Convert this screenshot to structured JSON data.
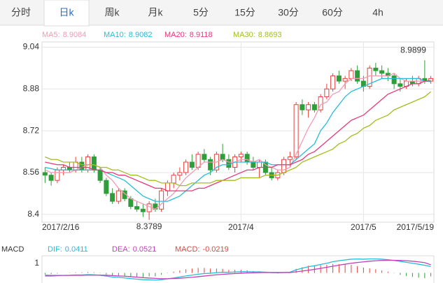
{
  "tabs": [
    "分时",
    "日k",
    "周k",
    "月k",
    "5分",
    "15分",
    "30分",
    "60分",
    "4h"
  ],
  "chart_data": [
    {
      "type": "candlestick",
      "categories": [
        "2017/2/16",
        null,
        null,
        null,
        null,
        null,
        null,
        null,
        null,
        null,
        null,
        null,
        null,
        null,
        null,
        null,
        null,
        null,
        null,
        null,
        null,
        null,
        null,
        null,
        null,
        null,
        null,
        null,
        null,
        null,
        null,
        null,
        "2017/4",
        null,
        null,
        null,
        null,
        null,
        null,
        null,
        null,
        null,
        null,
        null,
        null,
        null,
        null,
        null,
        null,
        null,
        null,
        null,
        "2017/5",
        null,
        null,
        null,
        null,
        null,
        null,
        null,
        null,
        null,
        null,
        "2017/5/19"
      ],
      "open": [
        8.56,
        8.55,
        8.53,
        8.57,
        8.58,
        8.57,
        8.6,
        8.57,
        8.62,
        8.57,
        8.53,
        8.48,
        8.45,
        8.49,
        8.46,
        8.43,
        8.42,
        8.41,
        8.44,
        8.42,
        8.49,
        8.52,
        8.55,
        8.56,
        8.6,
        8.58,
        8.63,
        8.61,
        8.57,
        8.63,
        8.61,
        8.58,
        8.62,
        8.63,
        8.6,
        8.58,
        8.6,
        8.56,
        8.54,
        8.56,
        8.61,
        8.62,
        8.82,
        8.8,
        8.82,
        8.8,
        8.85,
        8.88,
        8.93,
        8.91,
        8.92,
        8.95,
        8.91,
        8.89,
        8.96,
        8.95,
        8.94,
        8.93,
        8.9,
        8.89,
        8.91,
        8.9,
        8.92,
        8.91
      ],
      "high": [
        8.58,
        8.56,
        8.58,
        8.59,
        8.6,
        8.62,
        8.62,
        8.63,
        8.63,
        8.58,
        8.54,
        8.5,
        8.5,
        8.5,
        8.47,
        8.45,
        8.44,
        8.45,
        8.46,
        8.5,
        8.53,
        8.56,
        8.58,
        8.61,
        8.63,
        8.64,
        8.65,
        8.62,
        8.64,
        8.67,
        8.63,
        8.63,
        8.64,
        8.64,
        8.62,
        8.61,
        8.61,
        8.58,
        8.57,
        8.62,
        8.64,
        8.83,
        8.84,
        8.83,
        8.83,
        8.86,
        8.9,
        8.94,
        8.95,
        8.93,
        8.96,
        8.97,
        8.93,
        8.97,
        8.98,
        8.97,
        8.96,
        8.94,
        8.92,
        8.92,
        8.93,
        8.93,
        8.9899,
        8.93
      ],
      "low": [
        8.52,
        8.51,
        8.52,
        8.55,
        8.56,
        8.56,
        8.56,
        8.56,
        8.56,
        8.52,
        8.47,
        8.44,
        8.44,
        8.45,
        8.42,
        8.41,
        8.39,
        8.3789,
        8.41,
        8.41,
        8.47,
        8.5,
        8.53,
        8.55,
        8.57,
        8.57,
        8.6,
        8.55,
        8.56,
        8.6,
        8.57,
        8.56,
        8.6,
        8.59,
        8.57,
        8.54,
        8.55,
        8.53,
        8.53,
        8.55,
        8.58,
        8.61,
        8.78,
        8.77,
        8.79,
        8.79,
        8.84,
        8.87,
        8.9,
        8.88,
        8.91,
        8.9,
        8.87,
        8.88,
        8.93,
        8.92,
        8.91,
        8.88,
        8.87,
        8.88,
        8.89,
        8.89,
        8.9,
        8.9
      ],
      "close": [
        8.55,
        8.53,
        8.57,
        8.58,
        8.57,
        8.6,
        8.57,
        8.62,
        8.57,
        8.53,
        8.48,
        8.45,
        8.49,
        8.46,
        8.43,
        8.42,
        8.41,
        8.44,
        8.42,
        8.49,
        8.52,
        8.55,
        8.56,
        8.6,
        8.58,
        8.63,
        8.61,
        8.57,
        8.63,
        8.61,
        8.58,
        8.62,
        8.63,
        8.6,
        8.58,
        8.6,
        8.56,
        8.54,
        8.56,
        8.61,
        8.62,
        8.82,
        8.8,
        8.82,
        8.8,
        8.85,
        8.88,
        8.93,
        8.91,
        8.92,
        8.95,
        8.91,
        8.89,
        8.96,
        8.95,
        8.94,
        8.93,
        8.9,
        8.89,
        8.91,
        8.9,
        8.92,
        8.91,
        8.92
      ],
      "up_color": "#e8413c",
      "down_color": "#2f9e3a",
      "series": [
        {
          "name": "MA5:",
          "color": "#f29bb4",
          "values": [
            8.57,
            8.56,
            8.56,
            8.56,
            8.56,
            8.57,
            8.58,
            8.59,
            8.59,
            8.58,
            8.55,
            8.53,
            8.5,
            8.48,
            8.46,
            8.45,
            8.44,
            8.43,
            8.42,
            8.44,
            8.46,
            8.48,
            8.51,
            8.54,
            8.56,
            8.58,
            8.6,
            8.6,
            8.6,
            8.61,
            8.6,
            8.6,
            8.61,
            8.61,
            8.6,
            8.61,
            8.59,
            8.58,
            8.57,
            8.57,
            8.58,
            8.63,
            8.68,
            8.73,
            8.77,
            8.82,
            8.83,
            8.86,
            8.87,
            8.9,
            8.92,
            8.92,
            8.92,
            8.93,
            8.93,
            8.93,
            8.93,
            8.94,
            8.92,
            8.91,
            8.91,
            8.91,
            8.91,
            8.9084
          ]
        },
        {
          "name": "MA10:",
          "color": "#26bcd7",
          "values": [
            8.58,
            8.575,
            8.57,
            8.57,
            8.57,
            8.57,
            8.57,
            8.57,
            8.57,
            8.57,
            8.56,
            8.55,
            8.54,
            8.53,
            8.51,
            8.49,
            8.47,
            8.46,
            8.45,
            8.45,
            8.45,
            8.46,
            8.47,
            8.49,
            8.51,
            8.53,
            8.55,
            8.56,
            8.58,
            8.59,
            8.59,
            8.6,
            8.6,
            8.6,
            8.6,
            8.6,
            8.6,
            8.59,
            8.59,
            8.59,
            8.59,
            8.61,
            8.63,
            8.65,
            8.67,
            8.72,
            8.75,
            8.79,
            8.82,
            8.85,
            8.87,
            8.88,
            8.89,
            8.9,
            8.91,
            8.92,
            8.92,
            8.92,
            8.92,
            8.92,
            8.92,
            8.92,
            8.91,
            8.9082
          ]
        },
        {
          "name": "MA20:",
          "color": "#e53a7a",
          "values": [
            8.6,
            8.595,
            8.59,
            8.59,
            8.58,
            8.58,
            8.58,
            8.58,
            8.57,
            8.57,
            8.56,
            8.56,
            8.55,
            8.55,
            8.54,
            8.53,
            8.52,
            8.51,
            8.5,
            8.5,
            8.49,
            8.49,
            8.49,
            8.49,
            8.49,
            8.5,
            8.5,
            8.51,
            8.52,
            8.53,
            8.54,
            8.55,
            8.56,
            8.57,
            8.57,
            8.58,
            8.58,
            8.58,
            8.59,
            8.59,
            8.59,
            8.6,
            8.61,
            8.63,
            8.64,
            8.66,
            8.68,
            8.7,
            8.72,
            8.74,
            8.76,
            8.77,
            8.78,
            8.8,
            8.82,
            8.84,
            8.86,
            8.87,
            8.88,
            8.89,
            8.9,
            8.9,
            8.91,
            8.9118
          ]
        },
        {
          "name": "MA30:",
          "color": "#a3bd1e",
          "values": [
            8.62,
            8.61,
            8.61,
            8.6,
            8.6,
            8.6,
            8.59,
            8.59,
            8.59,
            8.58,
            8.58,
            8.57,
            8.57,
            8.56,
            8.55,
            8.55,
            8.54,
            8.53,
            8.53,
            8.52,
            8.52,
            8.52,
            8.51,
            8.51,
            8.52,
            8.52,
            8.52,
            8.52,
            8.53,
            8.53,
            8.53,
            8.53,
            8.54,
            8.54,
            8.54,
            8.54,
            8.55,
            8.55,
            8.55,
            8.56,
            8.57,
            8.58,
            8.6,
            8.61,
            8.62,
            8.63,
            8.64,
            8.65,
            8.67,
            8.68,
            8.7,
            8.71,
            8.73,
            8.74,
            8.76,
            8.77,
            8.78,
            8.8,
            8.81,
            8.82,
            8.83,
            8.84,
            8.85,
            8.8693
          ]
        }
      ],
      "ylim": [
        8.37,
        9.06
      ],
      "yticks": [
        9.04,
        8.88,
        8.72,
        8.56,
        8.4
      ],
      "grid": true
    },
    {
      "type": "macd",
      "label": "MACD",
      "scale_label": "1",
      "series": [
        {
          "name": "DIF:",
          "color": "#26bcd7",
          "values": [
            -0.02,
            -0.02,
            -0.018,
            -0.016,
            -0.015,
            -0.013,
            -0.013,
            -0.011,
            -0.012,
            -0.015,
            -0.02,
            -0.026,
            -0.028,
            -0.032,
            -0.036,
            -0.04,
            -0.043,
            -0.044,
            -0.046,
            -0.043,
            -0.038,
            -0.032,
            -0.026,
            -0.019,
            -0.014,
            -0.008,
            -0.004,
            -0.002,
            0.002,
            0.004,
            0.004,
            0.006,
            0.008,
            0.008,
            0.007,
            0.007,
            0.005,
            0.002,
            0.001,
            0.003,
            0.005,
            0.02,
            0.03,
            0.04,
            0.046,
            0.054,
            0.062,
            0.072,
            0.078,
            0.083,
            0.088,
            0.089,
            0.088,
            0.09,
            0.09,
            0.088,
            0.085,
            0.08,
            0.074,
            0.068,
            0.062,
            0.056,
            0.049,
            0.0411
          ]
        },
        {
          "name": "DEA:",
          "color": "#c33fb8",
          "values": [
            -0.015,
            -0.016,
            -0.016,
            -0.016,
            -0.016,
            -0.015,
            -0.015,
            -0.014,
            -0.014,
            -0.014,
            -0.015,
            -0.017,
            -0.019,
            -0.021,
            -0.024,
            -0.027,
            -0.03,
            -0.033,
            -0.035,
            -0.037,
            -0.037,
            -0.036,
            -0.034,
            -0.031,
            -0.028,
            -0.024,
            -0.02,
            -0.016,
            -0.012,
            -0.009,
            -0.006,
            -0.004,
            -0.002,
            0,
            0.001,
            0.002,
            0.003,
            0.003,
            0.003,
            0.003,
            0.003,
            0.007,
            0.012,
            0.017,
            0.023,
            0.029,
            0.036,
            0.043,
            0.05,
            0.056,
            0.062,
            0.067,
            0.071,
            0.075,
            0.078,
            0.08,
            0.081,
            0.081,
            0.08,
            0.078,
            0.075,
            0.071,
            0.066,
            0.0521
          ]
        }
      ],
      "histogram": {
        "name": "MACD:",
        "color": "#e8413c",
        "up_color": "#e8413c",
        "down_color": "#2f9e3a",
        "values": [
          -0.01,
          -0.008,
          -0.004,
          0,
          0.002,
          0.004,
          0.004,
          0.006,
          0.004,
          -0.002,
          -0.01,
          -0.018,
          -0.018,
          -0.022,
          -0.024,
          -0.026,
          -0.026,
          -0.022,
          -0.022,
          -0.012,
          -0.002,
          0.008,
          0.016,
          0.024,
          0.028,
          0.032,
          0.032,
          0.028,
          0.028,
          0.026,
          0.02,
          0.02,
          0.02,
          0.016,
          0.012,
          0.01,
          0.004,
          -0.002,
          -0.004,
          0,
          0.004,
          0.026,
          0.036,
          0.046,
          0.046,
          0.05,
          0.052,
          0.058,
          0.056,
          0.054,
          0.052,
          0.044,
          0.034,
          0.03,
          0.024,
          0.016,
          0.008,
          -0.002,
          -0.012,
          -0.02,
          -0.026,
          -0.03,
          -0.034,
          -0.0219
        ]
      },
      "ylim": [
        -0.06,
        0.11
      ]
    }
  ]
}
